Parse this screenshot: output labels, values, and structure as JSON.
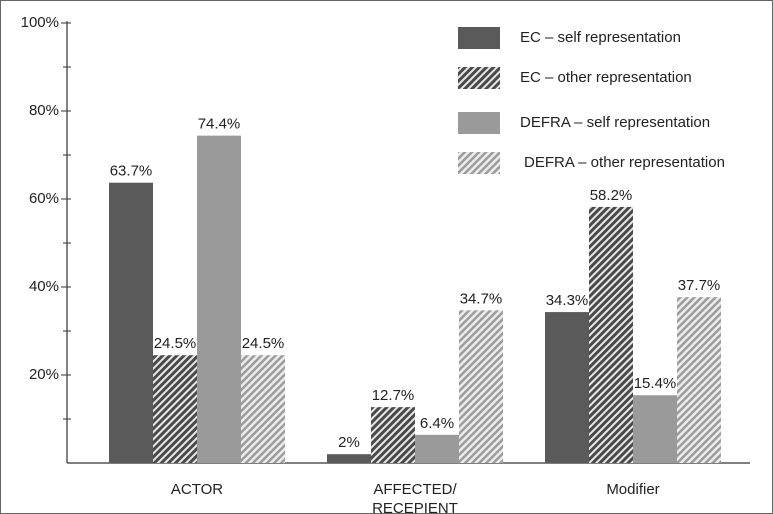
{
  "chart_data": {
    "type": "bar",
    "categories": [
      "ACTOR",
      "AFFECTED/\nRECEPIENT",
      "Modifier"
    ],
    "series": [
      {
        "name": "EC – self representation",
        "color": "#5a5a5a",
        "hatch": false,
        "values": [
          63.7,
          2,
          34.3
        ],
        "value_labels": [
          "63.7%",
          "2%",
          "34.3%"
        ]
      },
      {
        "name": "EC – other representation",
        "color": "#4a4a4a",
        "hatch": true,
        "values": [
          24.5,
          12.7,
          58.2
        ],
        "value_labels": [
          "24.5%",
          "12.7%",
          "58.2%"
        ]
      },
      {
        "name": "DEFRA – self representation",
        "color": "#9a9a9a",
        "hatch": false,
        "values": [
          74.4,
          6.4,
          15.4
        ],
        "value_labels": [
          "74.4%",
          "6.4%",
          "15.4%"
        ]
      },
      {
        "name": "DEFRA – other representation",
        "color": "#9c9c9c",
        "hatch": true,
        "values": [
          24.5,
          34.7,
          37.7
        ],
        "value_labels": [
          "24.5%",
          "34.7%",
          "37.7%"
        ]
      }
    ],
    "ylim": [
      0,
      100
    ],
    "yticks": [
      {
        "value": 20,
        "label": "20%"
      },
      {
        "value": 40,
        "label": "40%"
      },
      {
        "value": 60,
        "label": "60%"
      },
      {
        "value": 80,
        "label": "80%"
      },
      {
        "value": 100,
        "label": "100%"
      }
    ],
    "yticks_minor": [
      10,
      30,
      50,
      70,
      90
    ],
    "grid": false,
    "legend": "top-right"
  }
}
